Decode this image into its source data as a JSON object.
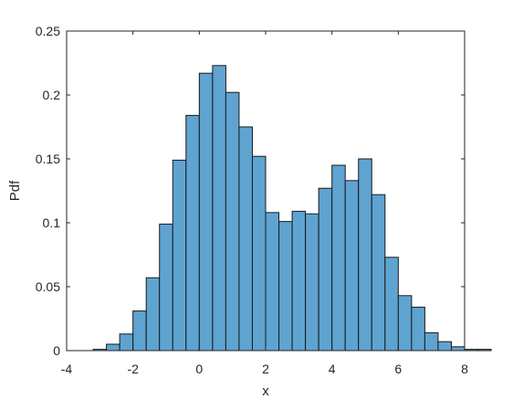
{
  "chart_data": {
    "type": "bar",
    "title": "",
    "xlabel": "x",
    "ylabel": "Pdf",
    "xlim": [
      -4,
      8
    ],
    "ylim": [
      0,
      0.25
    ],
    "x_ticks": [
      "-4",
      "-2",
      "0",
      "2",
      "4",
      "6",
      "8"
    ],
    "y_ticks": [
      "0",
      "0.05",
      "0.1",
      "0.15",
      "0.2",
      "0.25"
    ],
    "bar_color": "#5fa3d1",
    "edge_color": "#1a1a1a",
    "grid": false,
    "box": true,
    "bin_width": 0.4,
    "bin_edges_start": -3.2,
    "values": [
      0.001,
      0.005,
      0.013,
      0.031,
      0.057,
      0.099,
      0.149,
      0.184,
      0.217,
      0.223,
      0.202,
      0.175,
      0.152,
      0.108,
      0.101,
      0.109,
      0.107,
      0.127,
      0.145,
      0.133,
      0.15,
      0.122,
      0.073,
      0.043,
      0.034,
      0.014,
      0.007,
      0.003,
      0.001,
      0.001
    ]
  }
}
